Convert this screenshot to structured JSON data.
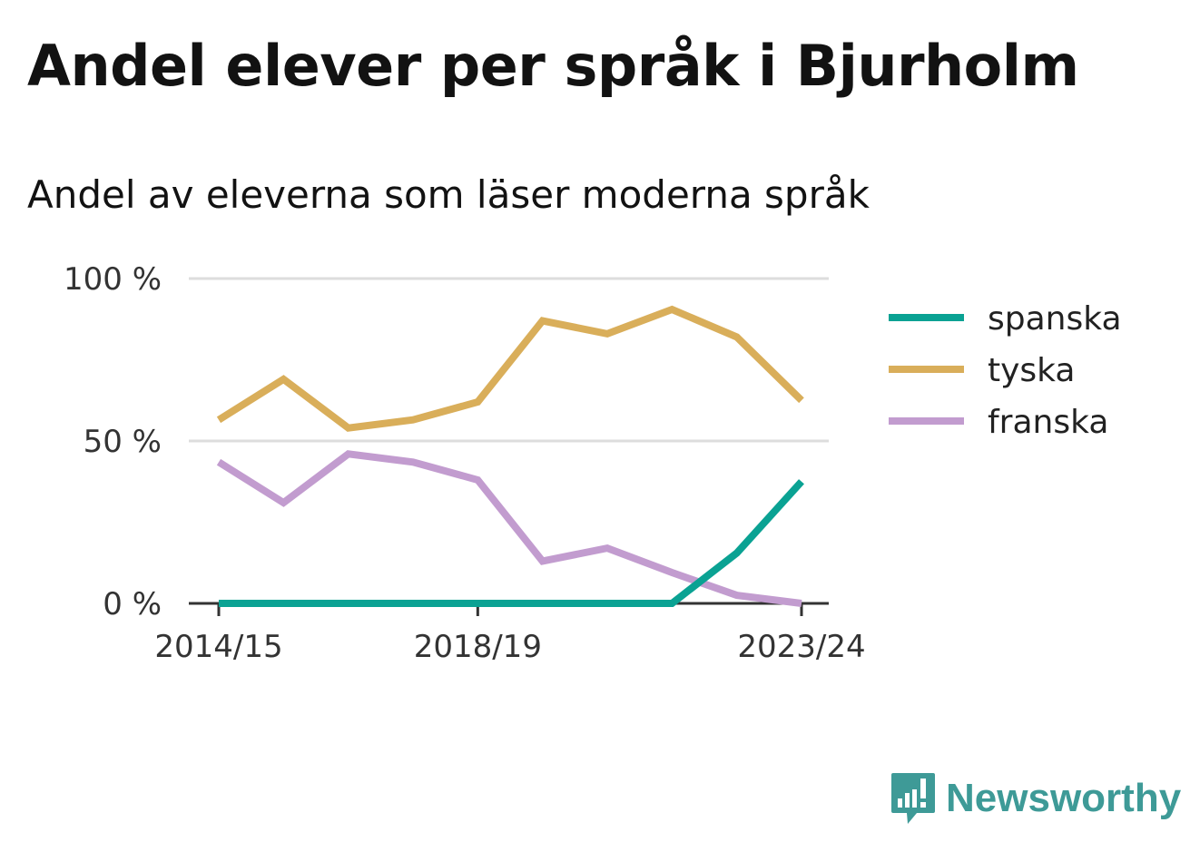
{
  "title": "Andel elever per språk i Bjurholm",
  "subtitle": "Andel av eleverna som läser moderna språk",
  "brand": {
    "name": "Newsworthy",
    "icon": "chart-bubble-icon",
    "color": "#3e9a97"
  },
  "chart_data": {
    "type": "line",
    "x": [
      "2014/15",
      "2015/16",
      "2016/17",
      "2017/18",
      "2018/19",
      "2019/20",
      "2020/21",
      "2021/22",
      "2022/23",
      "2023/24"
    ],
    "x_ticks": [
      "2014/15",
      "2018/19",
      "2023/24"
    ],
    "y_ticks": [
      {
        "value": 0,
        "label": "0 %"
      },
      {
        "value": 50,
        "label": "50 %"
      },
      {
        "value": 100,
        "label": "100 %"
      }
    ],
    "ylim": [
      0,
      100
    ],
    "grid": true,
    "legend_position": "right",
    "series": [
      {
        "name": "spanska",
        "color": "#0aa293",
        "values": [
          0,
          0,
          0,
          0,
          0,
          0,
          0,
          0,
          15.5,
          37.5
        ]
      },
      {
        "name": "tyska",
        "color": "#d9ae5a",
        "values": [
          56.5,
          69,
          54,
          56.5,
          62,
          87,
          83,
          90.5,
          82,
          62.5
        ]
      },
      {
        "name": "franska",
        "color": "#c29ccf",
        "values": [
          43.5,
          31,
          46,
          43.5,
          38,
          13,
          17,
          9.5,
          2.5,
          0
        ]
      }
    ]
  }
}
